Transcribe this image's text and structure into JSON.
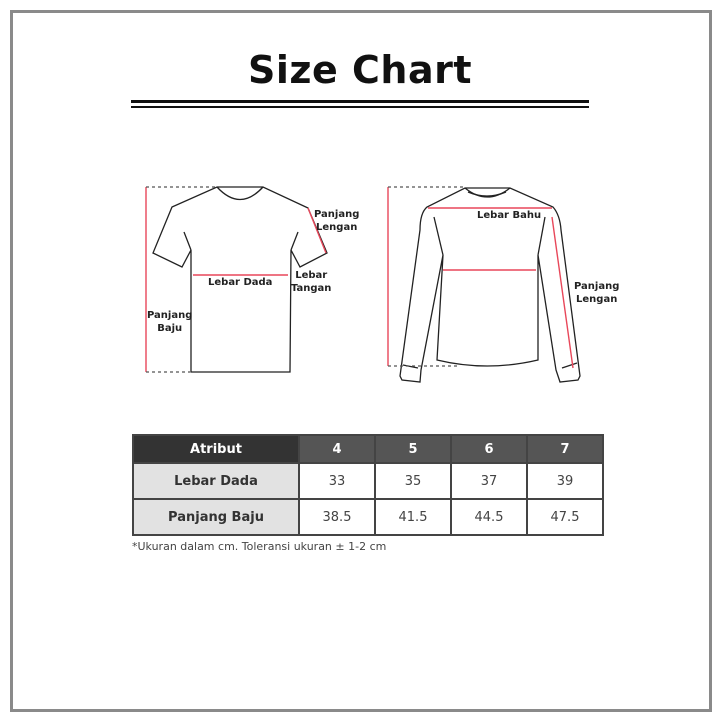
{
  "title": "Size Chart",
  "colors": {
    "measure_line": "#e8475a",
    "header_dark": "#333333",
    "header_mid": "#555555",
    "attr_bg": "#e2e2e2"
  },
  "diagrams": {
    "tshirt": {
      "sleeve_length": "Panjang\nLengan",
      "chest_width": "Lebar Dada",
      "sleeve_width": "Lebar\nTangan",
      "body_length": "Panjang\nBaju"
    },
    "longsleeve": {
      "shoulder_width": "Lebar Bahu",
      "sleeve_length": "Panjang\nLengan"
    }
  },
  "table": {
    "headers": [
      "Atribut",
      "4",
      "5",
      "6",
      "7"
    ],
    "rows": [
      {
        "label": "Lebar Dada",
        "values": [
          "33",
          "35",
          "37",
          "39"
        ]
      },
      {
        "label": "Panjang Baju",
        "values": [
          "38.5",
          "41.5",
          "44.5",
          "47.5"
        ]
      }
    ]
  },
  "note": "*Ukuran dalam cm. Toleransi ukuran ± 1-2 cm"
}
